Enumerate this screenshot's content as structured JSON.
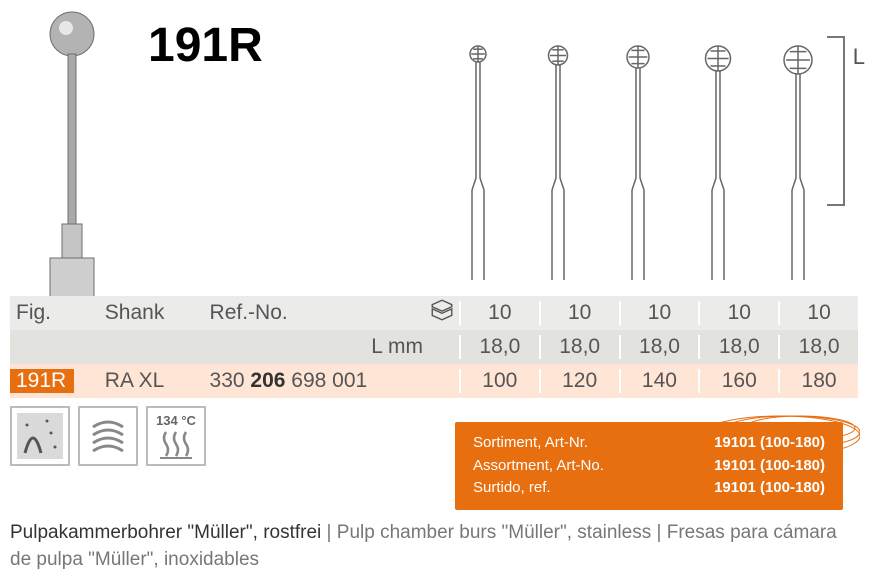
{
  "product_code": "191R",
  "table": {
    "header": {
      "fig": "Fig.",
      "shank": "Shank",
      "ref": "Ref.-No."
    },
    "lmm_label": "L mm",
    "sizes_qty": [
      "10",
      "10",
      "10",
      "10",
      "10"
    ],
    "sizes_lmm": [
      "18,0",
      "18,0",
      "18,0",
      "18,0",
      "18,0"
    ],
    "ref_row": {
      "fig": "191R",
      "shank": "RA XL",
      "ref_pre": "330 ",
      "ref_bold": "206",
      "ref_post": " 698 001",
      "sizes": [
        "100",
        "120",
        "140",
        "160",
        "180"
      ]
    }
  },
  "l_label": "L",
  "icons": {
    "autoclave_temp": "134 °C"
  },
  "assortment": {
    "lines": [
      {
        "lbl": "Sortiment, Art-Nr.",
        "val": "19101 (100-180)"
      },
      {
        "lbl": "Assortment, Art-No.",
        "val": "19101 (100-180)"
      },
      {
        "lbl": "Surtido, ref.",
        "val": "19101 (100-180)"
      }
    ]
  },
  "description": {
    "de": "Pulpakammerbohrer \"Müller\", rostfrei",
    "en": "Pulp chamber burs \"Müller\", stainless",
    "es": "Fresas para cámara de pulpa \"Müller\", inoxidables"
  },
  "colors": {
    "orange": "#e86f10",
    "row_header": "#ebebea",
    "row_lmm": "#e2e2df",
    "row_ref": "#ffe5d6",
    "text_grey": "#555"
  }
}
